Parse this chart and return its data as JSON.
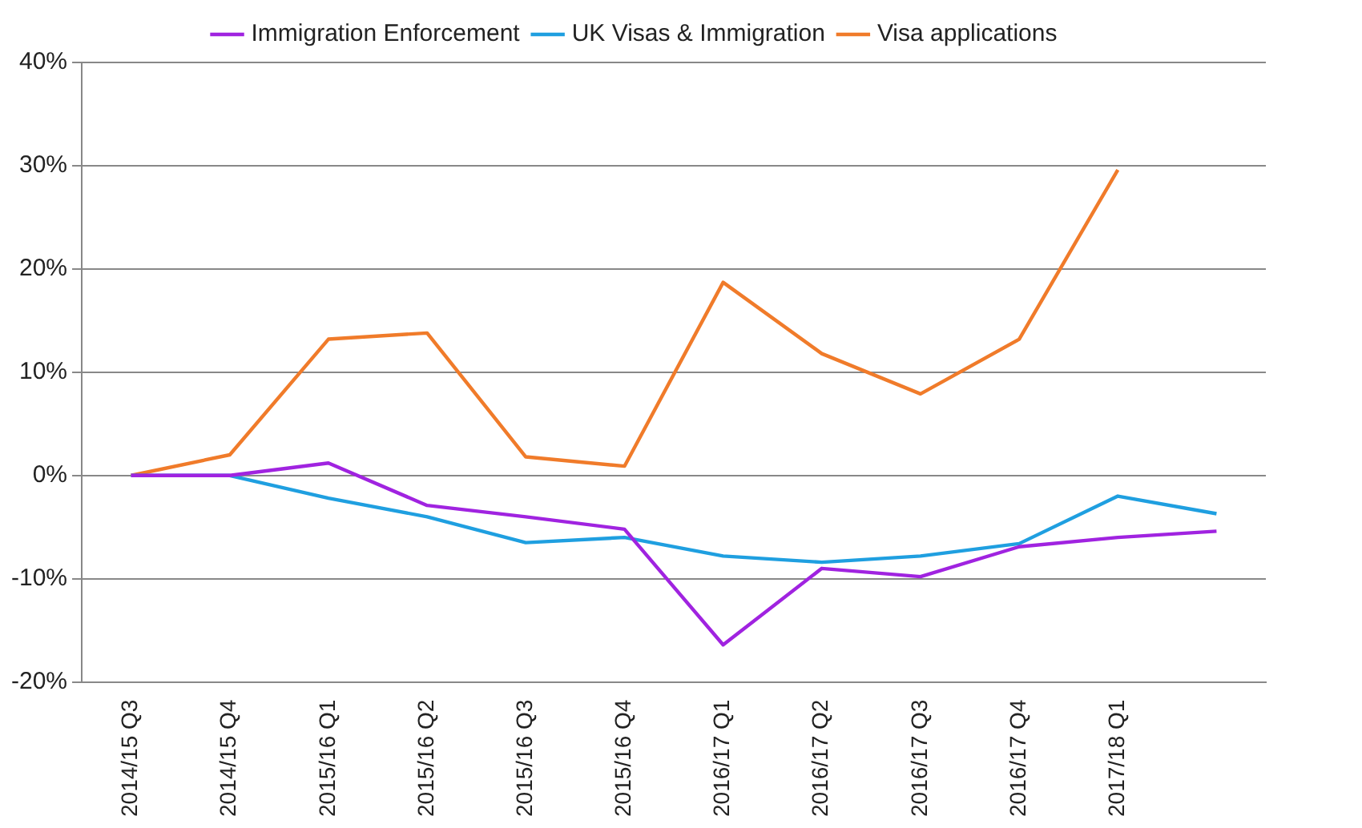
{
  "chart_data": {
    "type": "line",
    "categories": [
      "2014/15 Q3",
      "2014/15 Q4",
      "2015/16 Q1",
      "2015/16 Q2",
      "2015/16 Q3",
      "2015/16 Q4",
      "2016/17 Q1",
      "2016/17 Q2",
      "2016/17 Q3",
      "2016/17 Q4",
      "2017/18 Q1",
      null
    ],
    "series": [
      {
        "name": "Immigration Enforcement",
        "color": "#a023e0",
        "values": [
          0,
          0,
          1.2,
          -2.9,
          -4,
          -5.2,
          -16.4,
          -9,
          -9.8,
          -6.9,
          -6,
          -5.4
        ]
      },
      {
        "name": "UK Visas & Immigration",
        "color": "#1f9fe0",
        "values": [
          0,
          0,
          -2.2,
          -4,
          -6.5,
          -6,
          -7.8,
          -8.4,
          -7.8,
          -6.6,
          -2,
          -3.7
        ]
      },
      {
        "name": "Visa applications",
        "color": "#f07b2a",
        "values": [
          0,
          2,
          13.2,
          13.8,
          1.8,
          0.9,
          18.7,
          11.8,
          7.9,
          13.2,
          29.6,
          null
        ]
      }
    ],
    "ylim": [
      -20,
      40
    ],
    "yticks": [
      {
        "value": -20,
        "label": "-20%"
      },
      {
        "value": -10,
        "label": "-10%"
      },
      {
        "value": 0,
        "label": "0%"
      },
      {
        "value": 10,
        "label": "10%"
      },
      {
        "value": 20,
        "label": "20%"
      },
      {
        "value": 30,
        "label": "30%"
      },
      {
        "value": 40,
        "label": "40%"
      }
    ],
    "grid": "y",
    "legend": "top",
    "marker": "none",
    "line_style": "solid"
  }
}
